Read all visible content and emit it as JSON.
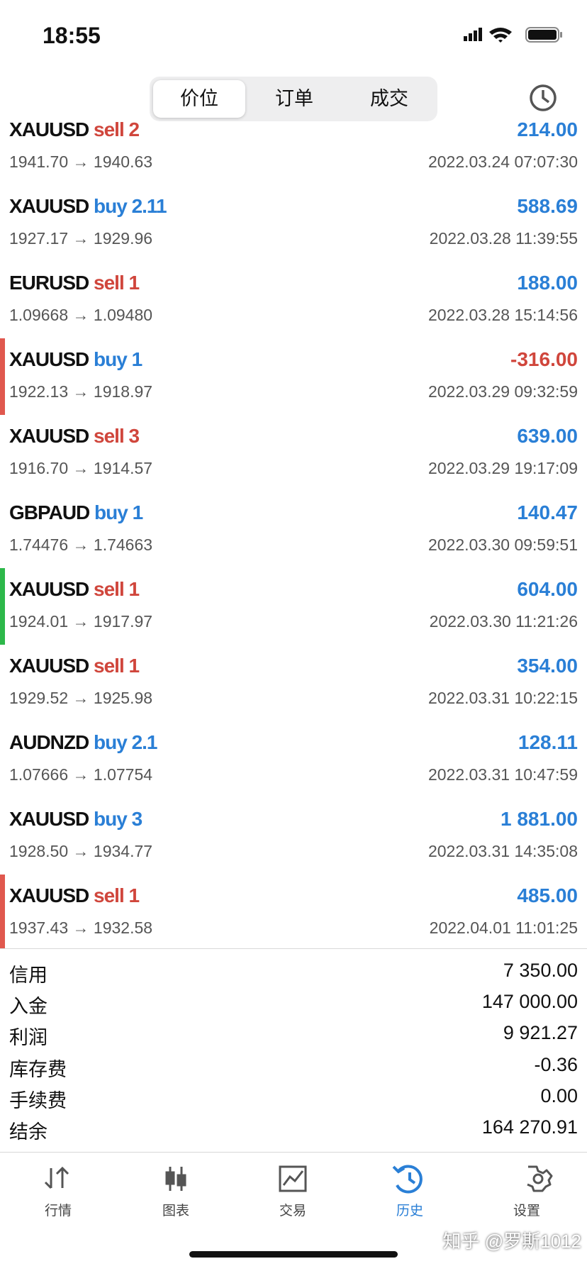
{
  "status": {
    "time": "18:55"
  },
  "segments": [
    "价位",
    "订单",
    "成交"
  ],
  "rows": [
    {
      "symbol": "XAUUSD",
      "side": "sell",
      "volume": "2",
      "profit": "214.00",
      "prices": "1941.70 → 1940.63",
      "time": "2022.03.24 07:07:30"
    },
    {
      "symbol": "XAUUSD",
      "side": "buy",
      "volume": "2.11",
      "profit": "588.69",
      "prices": "1927.17 → 1929.96",
      "time": "2022.03.28 11:39:55"
    },
    {
      "symbol": "EURUSD",
      "side": "sell",
      "volume": "1",
      "profit": "188.00",
      "prices": "1.09668 → 1.09480",
      "time": "2022.03.28 15:14:56"
    },
    {
      "symbol": "XAUUSD",
      "side": "buy",
      "volume": "1",
      "profit": "-316.00",
      "prices": "1922.13 → 1918.97",
      "time": "2022.03.29 09:32:59",
      "marker": "#e0584e"
    },
    {
      "symbol": "XAUUSD",
      "side": "sell",
      "volume": "3",
      "profit": "639.00",
      "prices": "1916.70 → 1914.57",
      "time": "2022.03.29 19:17:09"
    },
    {
      "symbol": "GBPAUD",
      "side": "buy",
      "volume": "1",
      "profit": "140.47",
      "prices": "1.74476 → 1.74663",
      "time": "2022.03.30 09:59:51"
    },
    {
      "symbol": "XAUUSD",
      "side": "sell",
      "volume": "1",
      "profit": "604.00",
      "prices": "1924.01 → 1917.97",
      "time": "2022.03.30 11:21:26",
      "marker": "#2db84a"
    },
    {
      "symbol": "XAUUSD",
      "side": "sell",
      "volume": "1",
      "profit": "354.00",
      "prices": "1929.52 → 1925.98",
      "time": "2022.03.31 10:22:15"
    },
    {
      "symbol": "AUDNZD",
      "side": "buy",
      "volume": "2.1",
      "profit": "128.11",
      "prices": "1.07666 → 1.07754",
      "time": "2022.03.31 10:47:59"
    },
    {
      "symbol": "XAUUSD",
      "side": "buy",
      "volume": "3",
      "profit": "1 881.00",
      "prices": "1928.50 → 1934.77",
      "time": "2022.03.31 14:35:08"
    },
    {
      "symbol": "XAUUSD",
      "side": "sell",
      "volume": "1",
      "profit": "485.00",
      "prices": "1937.43 → 1932.58",
      "time": "2022.04.01 11:01:25",
      "marker": "#e0584e"
    }
  ],
  "summary": [
    {
      "label": "信用",
      "value": "7 350.00"
    },
    {
      "label": "入金",
      "value": "147 000.00"
    },
    {
      "label": "利润",
      "value": "9 921.27"
    },
    {
      "label": "库存费",
      "value": "-0.36"
    },
    {
      "label": "手续费",
      "value": "0.00"
    },
    {
      "label": "结余",
      "value": "164 270.91"
    }
  ],
  "tabs": [
    "行情",
    "图表",
    "交易",
    "历史",
    "设置"
  ],
  "watermark": "知乎 @罗斯1012"
}
